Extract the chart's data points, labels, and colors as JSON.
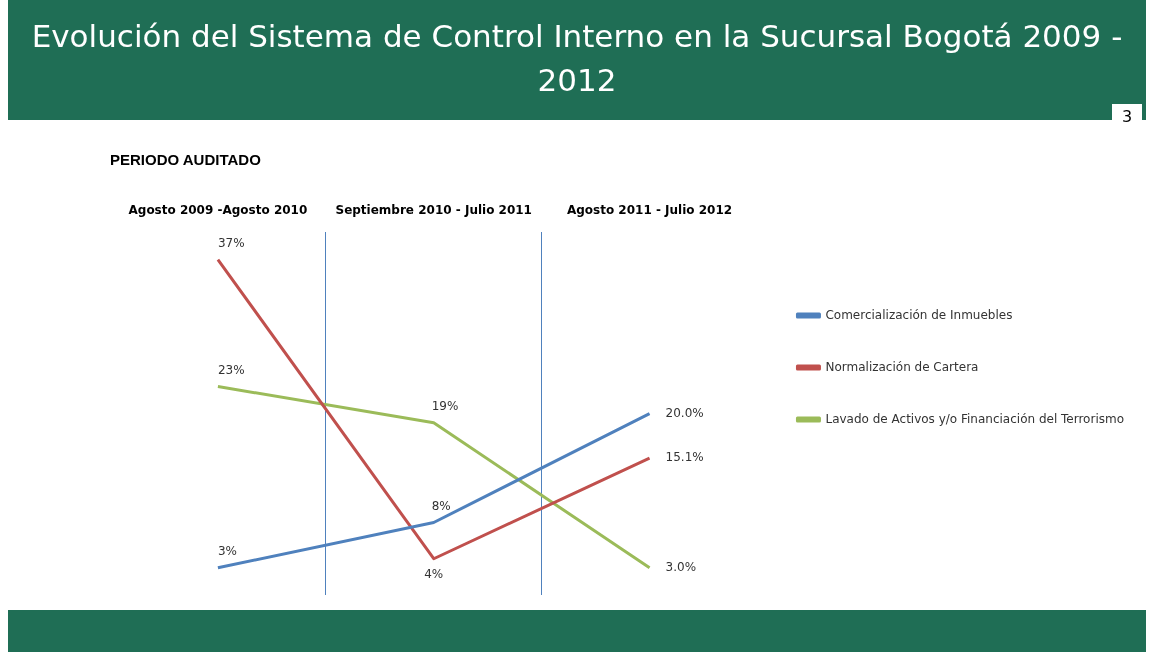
{
  "chart_data": {
    "type": "line",
    "title": "Evolución del Sistema de Control Interno en la Sucursal Bogotá  2009 - 2012",
    "subtitle": "PERIODO AUDITADO",
    "annotations": [
      "3"
    ],
    "categories": [
      "Agosto 2009 -Agosto 2010",
      "Septiembre 2010 - Julio 2011",
      "Agosto 2011 - Julio 2012"
    ],
    "series": [
      {
        "name": "Comercialización de Inmuebles",
        "color": "#4f81bd",
        "values": [
          3,
          8,
          20.0
        ],
        "value_labels": [
          "3%",
          "8%",
          "20.0%"
        ]
      },
      {
        "name": "Normalización de Cartera",
        "color": "#c0504d",
        "values": [
          37,
          4,
          15.1
        ],
        "value_labels": [
          "37%",
          "4%",
          "15.1%"
        ]
      },
      {
        "name": "Lavado de Activos y/o Financiación del Terrorismo",
        "color": "#9bbb59",
        "values": [
          23,
          19,
          3.0
        ],
        "value_labels": [
          "23%",
          "19%",
          "3.0%"
        ]
      }
    ],
    "grid": "x",
    "legend": "right",
    "tick_labels": "x",
    "marker": "none",
    "line_style": "solid"
  }
}
